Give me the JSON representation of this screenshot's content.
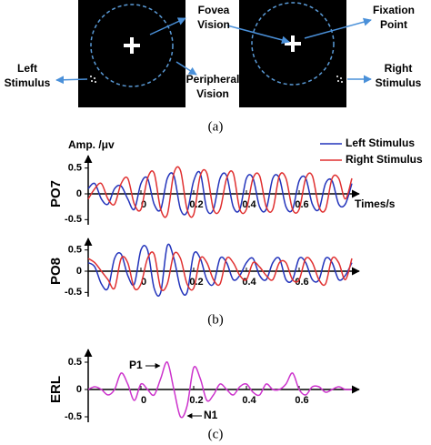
{
  "diagram": {
    "fovea": [
      "Fovea",
      "Vision"
    ],
    "fixation": [
      "Fixation",
      "Point"
    ],
    "left_stimulus": [
      "Left",
      "Stimulus"
    ],
    "peripheral": [
      "Peripheral",
      "Vision"
    ],
    "right_stimulus": [
      "Right",
      "Stimulus"
    ]
  },
  "captions": [
    "(a)",
    "(b)",
    "(c)"
  ],
  "chart_data": [
    {
      "type": "line",
      "title": "Amp. /μv",
      "ylabel": "PO7",
      "xlabel": "Times/s",
      "x": [
        -0.2,
        -0.175,
        -0.15,
        -0.125,
        -0.1,
        -0.075,
        -0.05,
        -0.025,
        0,
        0.025,
        0.05,
        0.075,
        0.1,
        0.125,
        0.15,
        0.175,
        0.2,
        0.225,
        0.25,
        0.275,
        0.3,
        0.325,
        0.35,
        0.375,
        0.4,
        0.425,
        0.45,
        0.475,
        0.5,
        0.525,
        0.55,
        0.575,
        0.6,
        0.625,
        0.65,
        0.675,
        0.7,
        0.725,
        0.75,
        0.775,
        0.8
      ],
      "series": [
        {
          "name": "Left Stimulus",
          "color": "#2233bb",
          "values": [
            0.1,
            0.2,
            -0.1,
            -0.2,
            0.1,
            0.15,
            -0.1,
            -0.3,
            0.2,
            0.3,
            -0.2,
            -0.3,
            0.3,
            0.35,
            -0.3,
            -0.35,
            0.25,
            0.4,
            -0.3,
            -0.3,
            0.3,
            0.35,
            -0.25,
            -0.3,
            0.3,
            0.3,
            -0.25,
            -0.3,
            0.3,
            0.3,
            -0.25,
            -0.3,
            0.25,
            0.3,
            -0.2,
            -0.3,
            0.2,
            0.25,
            -0.2,
            -0.2,
            0.2
          ]
        },
        {
          "name": "Right Stimulus",
          "color": "#e03030",
          "values": [
            -0.1,
            0.1,
            0.2,
            -0.1,
            -0.2,
            0.2,
            0.3,
            -0.2,
            -0.3,
            0.3,
            0.4,
            -0.3,
            -0.4,
            0.4,
            0.45,
            -0.3,
            -0.4,
            0.35,
            0.4,
            -0.3,
            -0.3,
            0.3,
            0.4,
            -0.3,
            -0.3,
            0.3,
            0.35,
            -0.25,
            -0.3,
            0.35,
            0.3,
            -0.3,
            -0.3,
            0.3,
            0.35,
            -0.25,
            -0.3,
            0.3,
            0.3,
            -0.1,
            0.3
          ]
        }
      ],
      "xlim": [
        -0.2,
        0.8
      ],
      "xticks": [
        0,
        0.2,
        0.4,
        0.6
      ],
      "ylim": [
        -0.6,
        0.6
      ],
      "yticks": [
        0.5,
        0,
        -0.5
      ]
    },
    {
      "type": "line",
      "ylabel": "PO8",
      "x": [
        -0.2,
        -0.175,
        -0.15,
        -0.125,
        -0.1,
        -0.075,
        -0.05,
        -0.025,
        0,
        0.025,
        0.05,
        0.075,
        0.1,
        0.125,
        0.15,
        0.175,
        0.2,
        0.225,
        0.25,
        0.275,
        0.3,
        0.325,
        0.35,
        0.375,
        0.4,
        0.425,
        0.45,
        0.475,
        0.5,
        0.525,
        0.55,
        0.575,
        0.6,
        0.625,
        0.65,
        0.675,
        0.7,
        0.725,
        0.75,
        0.775,
        0.8
      ],
      "series": [
        {
          "color": "#2233bb",
          "values": [
            0.2,
            0.1,
            -0.3,
            -0.4,
            0.3,
            0.4,
            -0.1,
            -0.3,
            0.5,
            0.5,
            -0.4,
            -0.5,
            0.6,
            0.3,
            -0.4,
            -0.5,
            0.4,
            0.3,
            -0.2,
            -0.3,
            0.3,
            0.2,
            -0.2,
            -0.1,
            0.2,
            0.3,
            -0.1,
            -0.2,
            0.2,
            0.3,
            -0.2,
            -0.2,
            0.3,
            0.2,
            -0.2,
            -0.2,
            0.3,
            0.2,
            -0.2,
            -0.1,
            0.2
          ]
        },
        {
          "color": "#e03030",
          "values": [
            0.3,
            0.2,
            0,
            -0.2,
            -0.4,
            0.3,
            0.2,
            -0.4,
            -0.3,
            0.3,
            0.4,
            -0.4,
            -0.3,
            0.4,
            0.3,
            -0.3,
            -0.4,
            0.3,
            0.2,
            -0.2,
            -0.3,
            0.3,
            0.2,
            -0.1,
            -0.2,
            0.2,
            0.1,
            -0.1,
            -0.2,
            0.2,
            0.2,
            -0.2,
            -0.2,
            0.3,
            0.2,
            -0.2,
            -0.3,
            0.3,
            0.2,
            -0.2,
            0.3
          ]
        }
      ],
      "xlim": [
        -0.2,
        0.8
      ],
      "xticks": [
        0,
        0.2,
        0.4,
        0.6
      ],
      "ylim": [
        -0.6,
        0.6
      ],
      "yticks": [
        0.5,
        0,
        -0.5
      ]
    },
    {
      "type": "line",
      "ylabel": "ERL",
      "annotations": [
        "P1",
        "N1"
      ],
      "x": [
        -0.2,
        -0.175,
        -0.15,
        -0.125,
        -0.1,
        -0.075,
        -0.05,
        -0.025,
        0,
        0.025,
        0.05,
        0.075,
        0.1,
        0.125,
        0.15,
        0.175,
        0.2,
        0.225,
        0.25,
        0.275,
        0.3,
        0.325,
        0.35,
        0.375,
        0.4,
        0.425,
        0.45,
        0.475,
        0.5,
        0.525,
        0.55,
        0.575,
        0.6,
        0.625,
        0.65,
        0.675,
        0.7,
        0.725,
        0.75,
        0.775,
        0.8
      ],
      "series": [
        {
          "color": "#cc33cc",
          "values": [
            0,
            0.05,
            0,
            -0.1,
            0,
            0.3,
            0.1,
            -0.2,
            0.1,
            0,
            -0.1,
            0.2,
            0.5,
            0,
            -0.5,
            -0.3,
            0.4,
            0.2,
            -0.2,
            -0.1,
            0.1,
            0,
            -0.1,
            0.05,
            0.1,
            -0.05,
            -0.1,
            0.1,
            0,
            0,
            0.1,
            0.3,
            0,
            -0.1,
            0.05,
            0.05,
            -0.05,
            0,
            0.05,
            0,
            0
          ]
        }
      ],
      "xlim": [
        -0.2,
        0.8
      ],
      "xticks": [
        0,
        0.2,
        0.4,
        0.6
      ],
      "ylim": [
        -0.6,
        0.6
      ],
      "yticks": [
        0.5,
        0,
        -0.5
      ]
    }
  ]
}
